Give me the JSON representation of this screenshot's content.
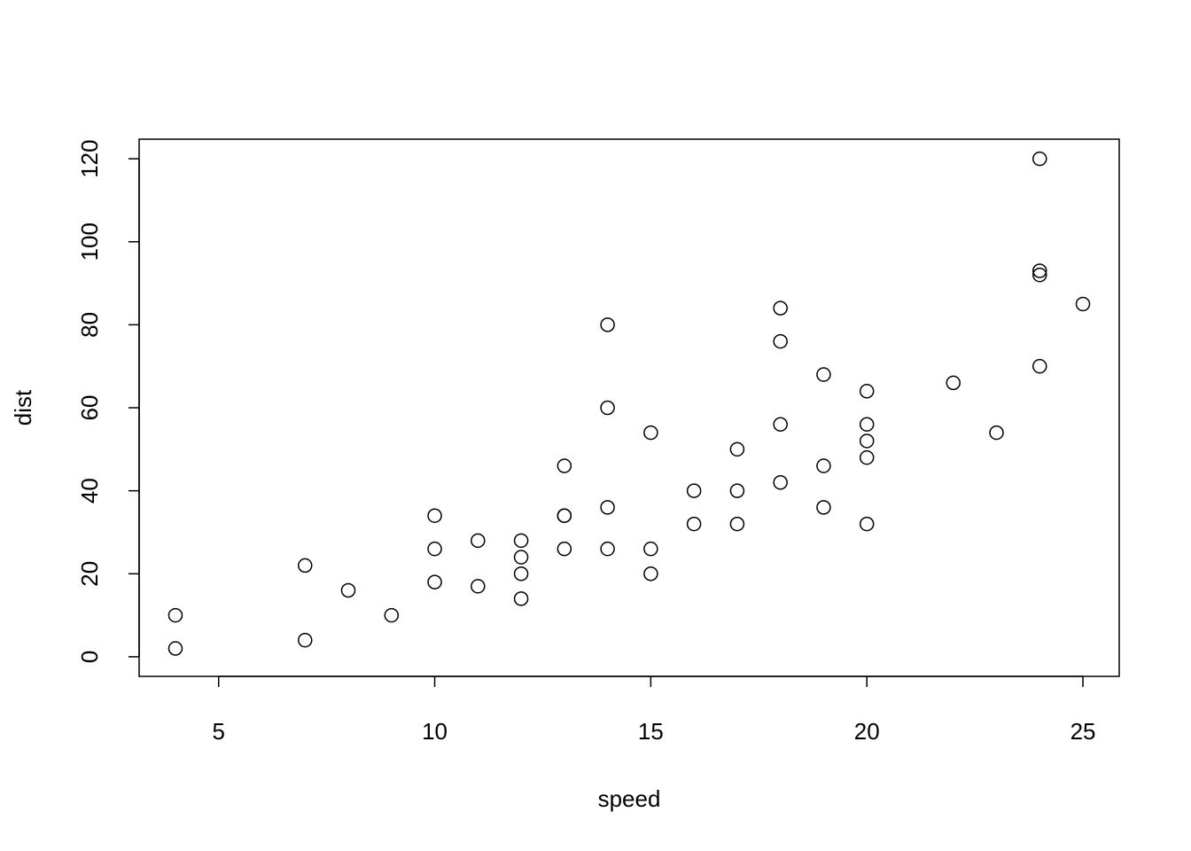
{
  "chart_data": {
    "type": "scatter",
    "title": "",
    "xlabel": "speed",
    "ylabel": "dist",
    "xlim": [
      3.16,
      25.84
    ],
    "ylim": [
      -4.72,
      124.72
    ],
    "xticks": [
      5,
      10,
      15,
      20,
      25
    ],
    "yticks": [
      0,
      20,
      40,
      60,
      80,
      100,
      120
    ],
    "grid": false,
    "marker": "open-circle",
    "color": "#000000",
    "x": [
      4,
      4,
      7,
      7,
      8,
      9,
      10,
      10,
      10,
      11,
      11,
      12,
      12,
      12,
      12,
      13,
      13,
      13,
      13,
      14,
      14,
      14,
      14,
      15,
      15,
      15,
      16,
      16,
      17,
      17,
      17,
      18,
      18,
      18,
      18,
      19,
      19,
      19,
      20,
      20,
      20,
      20,
      20,
      22,
      23,
      24,
      24,
      24,
      24,
      25
    ],
    "y": [
      2,
      10,
      4,
      22,
      16,
      10,
      18,
      26,
      34,
      17,
      28,
      14,
      20,
      24,
      28,
      26,
      34,
      34,
      46,
      26,
      36,
      60,
      80,
      20,
      26,
      54,
      32,
      40,
      32,
      40,
      50,
      42,
      56,
      76,
      84,
      36,
      46,
      68,
      32,
      48,
      52,
      56,
      64,
      66,
      54,
      70,
      92,
      93,
      120,
      85
    ]
  }
}
